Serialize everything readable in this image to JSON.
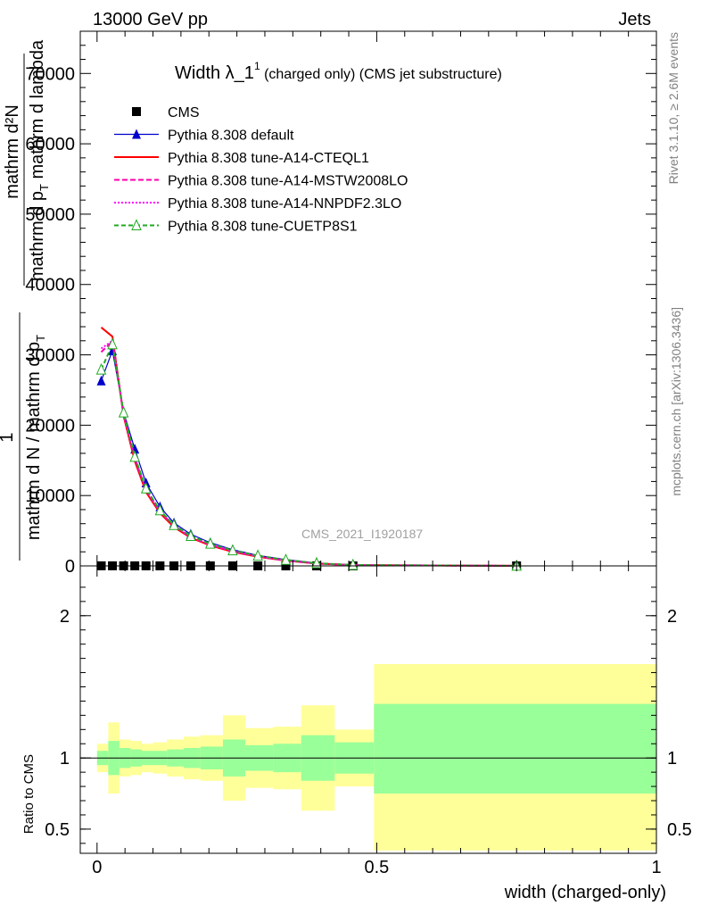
{
  "header": {
    "left": "13000 GeV pp",
    "right": "Jets"
  },
  "side_labels": {
    "rivet": "Rivet 3.1.10, ≥ 2.6M events",
    "mcplots": "mcplots.cern.ch [arXiv:1306.3436]"
  },
  "watermark": "CMS_2021_I1920187",
  "ylabel_main": {
    "num_top": "mathrm d²N",
    "num_one": "1",
    "den_a": "mathrm d p",
    "den_sub": "T",
    "den_b": " mathrm d lambda",
    "frac2_den": "mathrm d N / mathrm d p",
    "frac2_sub": "T"
  },
  "ylabel_ratio": "Ratio to CMS",
  "xlabel": "width (charged-only)",
  "chart_data": {
    "type": "line",
    "title": "Width λ_1¹ (charged only) (CMS jet substructure)",
    "title_main": "Width λ_1",
    "title_sup": "1",
    "title_rest": " (charged only) (CMS jet substructure)",
    "xlim": [
      -0.03,
      1.0
    ],
    "ylim_main": [
      0,
      76000
    ],
    "ylim_ratio": [
      0.33,
      2.35
    ],
    "x_ticks": [
      0,
      0.5,
      1
    ],
    "x_tick_labels": [
      "0",
      "0.5",
      "1"
    ],
    "y_ticks_main": [
      0,
      10000,
      20000,
      30000,
      40000,
      50000,
      60000,
      70000
    ],
    "y_tick_labels_main": [
      "0",
      "10000",
      "20000",
      "30000",
      "40000",
      "50000",
      "60000",
      "70000"
    ],
    "y_ticks_ratio": [
      0.5,
      1,
      2
    ],
    "y_tick_labels_ratio": [
      "0.5",
      "1",
      "2"
    ],
    "legend_position": "top-left",
    "series": [
      {
        "name": "CMS",
        "color": "#000000",
        "marker": "square",
        "dash": "",
        "x": [
          0.0075,
          0.0275,
          0.0475,
          0.0675,
          0.0875,
          0.1125,
          0.1375,
          0.1675,
          0.2025,
          0.2425,
          0.2875,
          0.3375,
          0.3925,
          0.4575,
          0.75
        ],
        "y": [
          14,
          12,
          10,
          9,
          8,
          7,
          6,
          5,
          4,
          3,
          3,
          2,
          2,
          1,
          1
        ]
      },
      {
        "name": "Pythia 8.308 default",
        "color": "#0000cc",
        "marker": "triangle",
        "dash": "",
        "x": [
          0.0075,
          0.0275,
          0.0475,
          0.0675,
          0.0875,
          0.1125,
          0.1375,
          0.1675,
          0.2025,
          0.2425,
          0.2875,
          0.3375,
          0.3925,
          0.4575,
          0.75
        ],
        "y": [
          26300,
          30600,
          21900,
          16600,
          11800,
          8400,
          6100,
          4500,
          3300,
          2300,
          1500,
          900,
          400,
          150,
          10
        ]
      },
      {
        "name": "Pythia 8.308 tune-A14-CTEQL1",
        "color": "#ff0000",
        "marker": "",
        "dash": "",
        "x": [
          0.0075,
          0.0275,
          0.0475,
          0.0675,
          0.0875,
          0.1125,
          0.1375,
          0.1675,
          0.2025,
          0.2425,
          0.2875,
          0.3375,
          0.3925,
          0.4575,
          0.75
        ],
        "y": [
          33900,
          32600,
          21300,
          14900,
          10500,
          7500,
          5500,
          4000,
          2900,
          2000,
          1300,
          750,
          330,
          110,
          8
        ]
      },
      {
        "name": "Pythia 8.308 tune-A14-MSTW2008LO",
        "color": "#ff00aa",
        "marker": "",
        "dash": "6,3",
        "x": [
          0.0075,
          0.0275,
          0.0475,
          0.0675,
          0.0875,
          0.1125,
          0.1375,
          0.1675,
          0.2025,
          0.2425,
          0.2875,
          0.3375,
          0.3925,
          0.4575,
          0.75
        ],
        "y": [
          30400,
          31900,
          21500,
          15300,
          10800,
          7700,
          5700,
          4100,
          3000,
          2100,
          1350,
          770,
          340,
          115,
          8
        ]
      },
      {
        "name": "Pythia 8.308 tune-A14-NNPDF2.3LO",
        "color": "#ff00ff",
        "marker": "",
        "dash": "2,2",
        "x": [
          0.0075,
          0.0275,
          0.0475,
          0.0675,
          0.0875,
          0.1125,
          0.1375,
          0.1675,
          0.2025,
          0.2425,
          0.2875,
          0.3375,
          0.3925,
          0.4575,
          0.75
        ],
        "y": [
          30900,
          32000,
          21600,
          15400,
          10900,
          7800,
          5750,
          4150,
          3050,
          2120,
          1370,
          780,
          345,
          118,
          8
        ]
      },
      {
        "name": "Pythia 8.308 tune-CUETP8S1",
        "color": "#22aa22",
        "marker": "triangle-open",
        "dash": "5,3",
        "x": [
          0.0075,
          0.0275,
          0.0475,
          0.0675,
          0.0875,
          0.1125,
          0.1375,
          0.1675,
          0.2025,
          0.2425,
          0.2875,
          0.3375,
          0.3925,
          0.4575,
          0.75
        ],
        "y": [
          27900,
          31500,
          21800,
          15500,
          11000,
          7900,
          5800,
          4250,
          3150,
          2200,
          1450,
          850,
          380,
          130,
          9
        ]
      }
    ],
    "ratio_bands": {
      "bin_edges": [
        0,
        0.02,
        0.04,
        0.06,
        0.08,
        0.1,
        0.125,
        0.155,
        0.185,
        0.225,
        0.265,
        0.315,
        0.365,
        0.425,
        0.495,
        1.0
      ],
      "inner_lo": [
        0.95,
        0.88,
        0.93,
        0.94,
        0.95,
        0.95,
        0.94,
        0.93,
        0.92,
        0.87,
        0.91,
        0.9,
        0.84,
        0.89,
        0.75
      ],
      "inner_hi": [
        1.05,
        1.12,
        1.07,
        1.06,
        1.05,
        1.05,
        1.06,
        1.07,
        1.08,
        1.13,
        1.09,
        1.1,
        1.16,
        1.11,
        1.38
      ],
      "outer_lo": [
        0.9,
        0.75,
        0.87,
        0.88,
        0.9,
        0.89,
        0.87,
        0.85,
        0.84,
        0.7,
        0.79,
        0.78,
        0.63,
        0.8,
        0.35
      ],
      "outer_hi": [
        1.1,
        1.25,
        1.13,
        1.12,
        1.1,
        1.11,
        1.13,
        1.15,
        1.16,
        1.3,
        1.21,
        1.22,
        1.37,
        1.2,
        1.66
      ],
      "inner_color": "#99ff99",
      "outer_color": "#ffff99"
    }
  }
}
